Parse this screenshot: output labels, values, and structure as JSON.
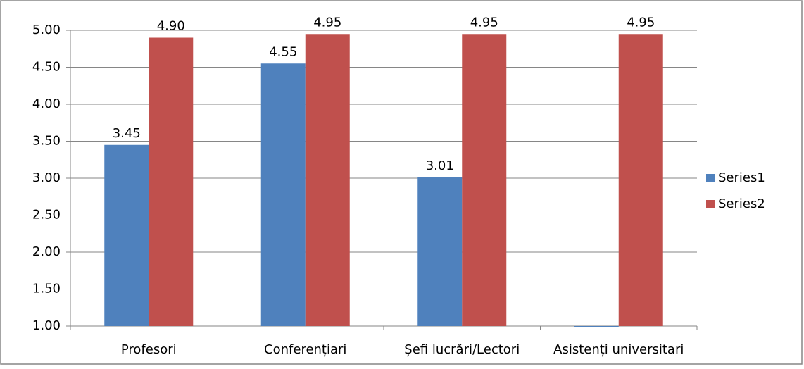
{
  "chart_data": {
    "type": "bar",
    "categories": [
      "Profesori",
      "Conferențiari",
      "Șefi lucrări/Lectori",
      "Asistenți universitari"
    ],
    "series": [
      {
        "name": "Series1",
        "color": "#4f81bd",
        "values": [
          3.45,
          4.55,
          3.01,
          0.99
        ],
        "value_labels": [
          "3.45",
          "4.55",
          "3.01",
          null
        ]
      },
      {
        "name": "Series2",
        "color": "#c0504d",
        "values": [
          4.9,
          4.95,
          4.95,
          4.95
        ],
        "value_labels": [
          "4.90",
          "4.95",
          "4.95",
          "4.95"
        ]
      }
    ],
    "ylim": [
      1,
      5
    ],
    "yticks": [
      {
        "value": 1,
        "label": "1.00"
      },
      {
        "value": 1.5,
        "label": "1.50"
      },
      {
        "value": 2,
        "label": "2.00"
      },
      {
        "value": 2.5,
        "label": "2.50"
      },
      {
        "value": 3,
        "label": "3.00"
      },
      {
        "value": 3.5,
        "label": "3.50"
      },
      {
        "value": 4,
        "label": "4.00"
      },
      {
        "value": 4.5,
        "label": "4.50"
      },
      {
        "value": 5,
        "label": "5.00"
      }
    ],
    "grid": true,
    "legend": "right"
  }
}
